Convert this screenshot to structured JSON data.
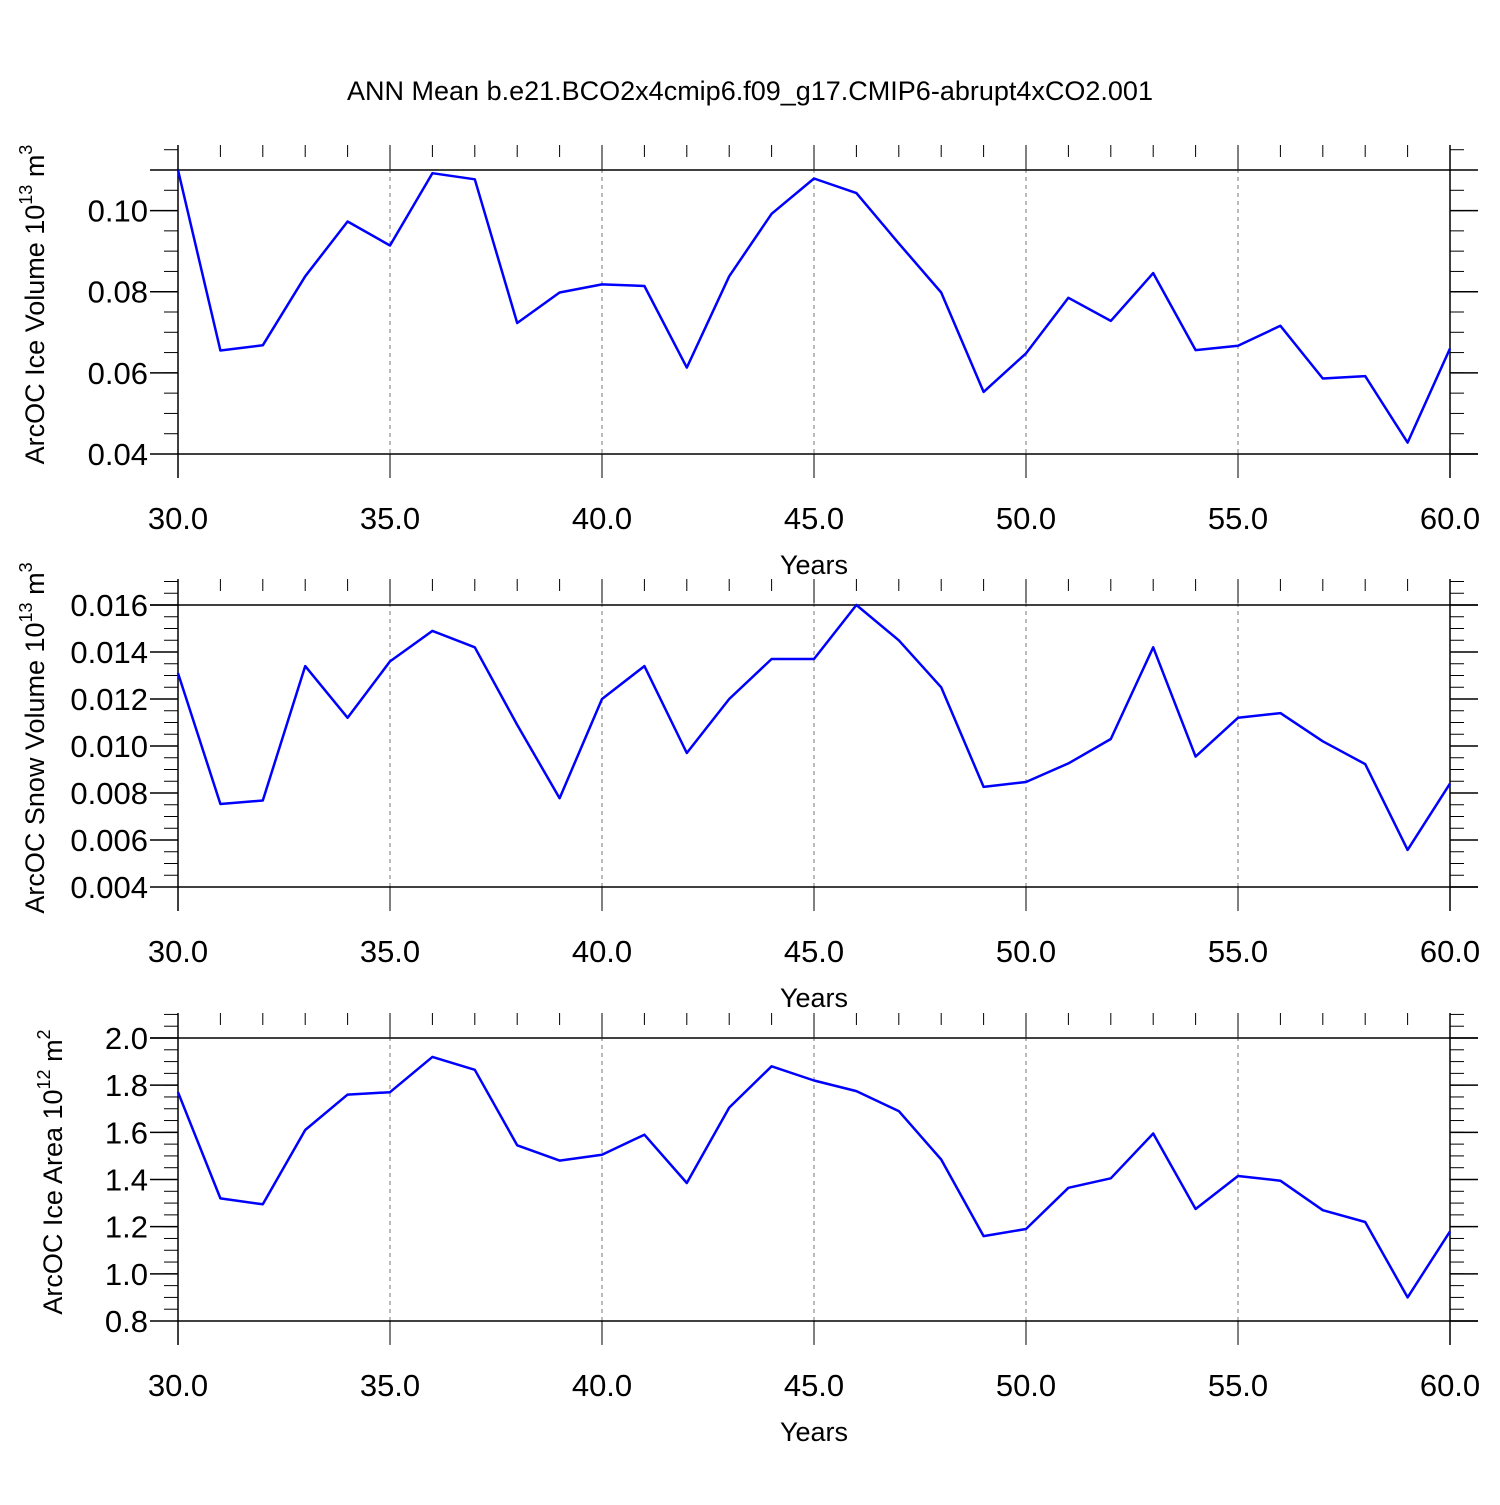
{
  "title": "ANN Mean b.e21.BCO2x4cmip6.f09_g17.CMIP6-abrupt4xCO2.001",
  "chart_data": [
    {
      "type": "line",
      "xlabel": "Years",
      "ylabel": "ArcOC Ice Volume 10",
      "ylabel_exp": "13",
      "ylabel_unit": " m",
      "ylabel_unit_exp": "3",
      "xlim": [
        30,
        60
      ],
      "ylim": [
        0.04,
        0.11
      ],
      "xticks": [
        "30.0",
        "35.0",
        "40.0",
        "45.0",
        "50.0",
        "55.0",
        "60.0"
      ],
      "yticks": [
        0.04,
        0.06,
        0.08,
        0.1
      ],
      "ytick_labels": [
        "0.04",
        "0.06",
        "0.08",
        "0.10"
      ],
      "ytick_minor": 0.005,
      "line_color": "#0000ff",
      "grid": "vertical dashed at major x ticks",
      "x": [
        30,
        31,
        32,
        33,
        34,
        35,
        36,
        37,
        38,
        39,
        40,
        41,
        42,
        43,
        44,
        45,
        46,
        47,
        48,
        49,
        50,
        51,
        52,
        53,
        54,
        55,
        56,
        57,
        58,
        59,
        60
      ],
      "values": [
        0.11,
        0.0655,
        0.0668,
        0.0838,
        0.0973,
        0.0914,
        0.1092,
        0.1077,
        0.0723,
        0.0798,
        0.0818,
        0.0814,
        0.0613,
        0.0838,
        0.0992,
        0.1079,
        0.1043,
        0.0919,
        0.0798,
        0.0553,
        0.0648,
        0.0785,
        0.0728,
        0.0846,
        0.0656,
        0.0667,
        0.0716,
        0.0586,
        0.0592,
        0.0428,
        0.066
      ]
    },
    {
      "type": "line",
      "xlabel": "Years",
      "ylabel": "ArcOC Snow Volume 10",
      "ylabel_exp": "13",
      "ylabel_unit": " m",
      "ylabel_unit_exp": "3",
      "xlim": [
        30,
        60
      ],
      "ylim": [
        0.004,
        0.016
      ],
      "xticks": [
        "30.0",
        "35.0",
        "40.0",
        "45.0",
        "50.0",
        "55.0",
        "60.0"
      ],
      "yticks": [
        0.004,
        0.006,
        0.008,
        0.01,
        0.012,
        0.014,
        0.016
      ],
      "ytick_labels": [
        "0.004",
        "0.006",
        "0.008",
        "0.010",
        "0.012",
        "0.014",
        "0.016"
      ],
      "ytick_minor": 0.0005,
      "line_color": "#0000ff",
      "grid": "vertical dashed at major x ticks",
      "x": [
        30,
        31,
        32,
        33,
        34,
        35,
        36,
        37,
        38,
        39,
        40,
        41,
        42,
        43,
        44,
        45,
        46,
        47,
        48,
        49,
        50,
        51,
        52,
        53,
        54,
        55,
        56,
        57,
        58,
        59,
        60
      ],
      "values": [
        0.0131,
        0.00753,
        0.00768,
        0.0134,
        0.0112,
        0.0136,
        0.0149,
        0.0142,
        0.0109,
        0.00778,
        0.012,
        0.0134,
        0.0097,
        0.012,
        0.0137,
        0.0137,
        0.016,
        0.0145,
        0.0125,
        0.00826,
        0.00847,
        0.00926,
        0.0103,
        0.0142,
        0.00955,
        0.0112,
        0.0114,
        0.0102,
        0.00923,
        0.00558,
        0.0084
      ]
    },
    {
      "type": "line",
      "xlabel": "Years",
      "ylabel": "ArcOC Ice Area 10",
      "ylabel_exp": "12",
      "ylabel_unit": " m",
      "ylabel_unit_exp": "2",
      "xlim": [
        30,
        60
      ],
      "ylim": [
        0.8,
        2.0
      ],
      "xticks": [
        "30.0",
        "35.0",
        "40.0",
        "45.0",
        "50.0",
        "55.0",
        "60.0"
      ],
      "yticks": [
        0.8,
        1.0,
        1.2,
        1.4,
        1.6,
        1.8,
        2.0
      ],
      "ytick_labels": [
        "0.8",
        "1.0",
        "1.2",
        "1.4",
        "1.6",
        "1.8",
        "2.0"
      ],
      "ytick_minor": 0.05,
      "line_color": "#0000ff",
      "grid": "vertical dashed at major x ticks",
      "x": [
        30,
        31,
        32,
        33,
        34,
        35,
        36,
        37,
        38,
        39,
        40,
        41,
        42,
        43,
        44,
        45,
        46,
        47,
        48,
        49,
        50,
        51,
        52,
        53,
        54,
        55,
        56,
        57,
        58,
        59,
        60
      ],
      "values": [
        1.77,
        1.32,
        1.295,
        1.61,
        1.76,
        1.77,
        1.92,
        1.865,
        1.545,
        1.48,
        1.505,
        1.59,
        1.385,
        1.705,
        1.88,
        1.82,
        1.775,
        1.69,
        1.485,
        1.16,
        1.19,
        1.365,
        1.405,
        1.595,
        1.275,
        1.415,
        1.395,
        1.27,
        1.22,
        0.9,
        1.18
      ]
    }
  ]
}
